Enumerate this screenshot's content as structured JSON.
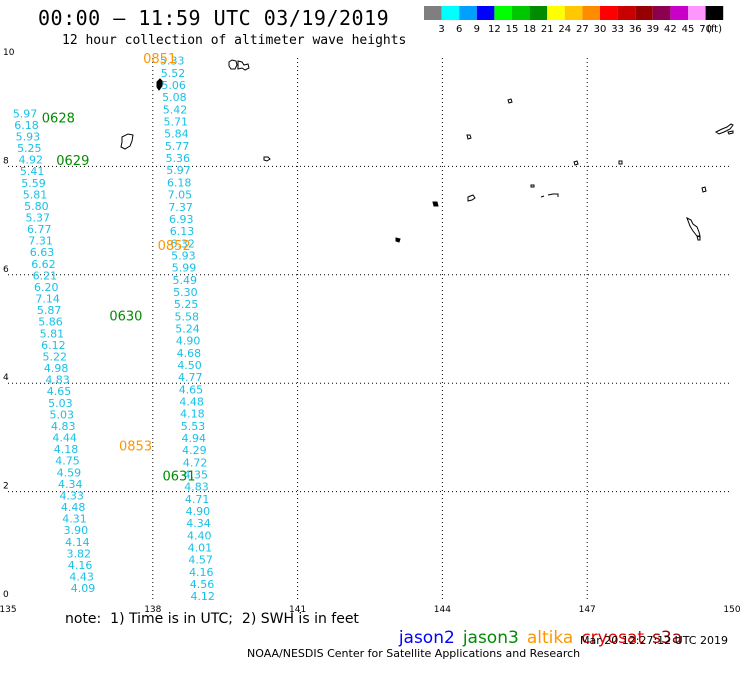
{
  "header": {
    "title": "00:00 – 11:59 UTC 03/19/2019",
    "subtitle": "12 hour collection of altimeter wave heights"
  },
  "legend": {
    "unit": "(ft)",
    "bins": [
      {
        "label": "3",
        "color": "#7f7f7f"
      },
      {
        "label": "6",
        "color": "#00ffff"
      },
      {
        "label": "9",
        "color": "#00a0ff"
      },
      {
        "label": "12",
        "color": "#0000ff"
      },
      {
        "label": "15",
        "color": "#00ff00"
      },
      {
        "label": "18",
        "color": "#00c800"
      },
      {
        "label": "21",
        "color": "#008c00"
      },
      {
        "label": "24",
        "color": "#ffff00"
      },
      {
        "label": "27",
        "color": "#ffc800"
      },
      {
        "label": "30",
        "color": "#ff8c00"
      },
      {
        "label": "33",
        "color": "#ff0000"
      },
      {
        "label": "36",
        "color": "#c80000"
      },
      {
        "label": "39",
        "color": "#960000"
      },
      {
        "label": "42",
        "color": "#8c0050"
      },
      {
        "label": "45",
        "color": "#c800c8"
      },
      {
        "label": "70",
        "color": "#ff96ff"
      },
      {
        "label": "",
        "color": "#000000"
      }
    ]
  },
  "axes": {
    "x_ticks": [
      "135",
      "138",
      "141",
      "144",
      "147",
      "150"
    ],
    "y_ticks": [
      "0",
      "2",
      "4",
      "6",
      "8",
      "10"
    ]
  },
  "colors": {
    "swh_value": "#19c0e6",
    "jason2": "#0000ff",
    "jason3": "#008c00",
    "altika": "#ff9600",
    "cryosat": "#e60000",
    "s3a": "#a00000"
  },
  "passes": [
    {
      "label": "0851",
      "color": "#ff9600",
      "lon": 137.8,
      "lat": 10.0
    },
    {
      "label": "0628",
      "color": "#008c00",
      "lon": 135.7,
      "lat": 8.9
    },
    {
      "label": "0629",
      "color": "#008c00",
      "lon": 136.0,
      "lat": 8.12
    },
    {
      "label": "0852",
      "color": "#ff9600",
      "lon": 138.1,
      "lat": 6.55
    },
    {
      "label": "0630",
      "color": "#008c00",
      "lon": 137.1,
      "lat": 5.25
    },
    {
      "label": "0853",
      "color": "#ff9600",
      "lon": 137.3,
      "lat": 2.85
    },
    {
      "label": "0631",
      "color": "#008c00",
      "lon": 138.2,
      "lat": 2.3
    }
  ],
  "tracks": [
    {
      "values": [
        "5.33",
        "5.52",
        "5.06",
        "5.08",
        "5.42",
        "5.71",
        "5.84",
        "5.77",
        "5.36",
        "5.97",
        "6.18",
        "7.05",
        "7.37",
        "6.93",
        "6.13",
        "6.32",
        "5.93",
        "5.99",
        "5.49",
        "5.30",
        "5.25",
        "5.58",
        "5.24",
        "4.90",
        "4.68",
        "4.50",
        "4.77",
        "4.65",
        "4.48",
        "4.18",
        "5.53",
        "4.94",
        "4.29",
        "4.72",
        "4.35",
        "4.83",
        "4.71",
        "4.90",
        "4.34",
        "4.40",
        "4.01",
        "4.57",
        "4.16",
        "4.56",
        "4.12"
      ],
      "lon_start": 138.15,
      "lat_start": 9.95,
      "lon_end": 138.78,
      "lat_end": 0.07
    },
    {
      "values": [
        "5.97",
        "6.18",
        "5.93",
        "5.25",
        "4.92",
        "5.41",
        "5.59",
        "5.81",
        "5.80",
        "5.37",
        "6.77",
        "7.31",
        "6.63",
        "6.62",
        "6.21",
        "6.20",
        "7.14",
        "5.87",
        "5.86",
        "5.81",
        "6.12",
        "5.22",
        "4.98",
        "4.83",
        "4.65",
        "5.03",
        "5.03",
        "4.83",
        "4.44",
        "4.18",
        "4.75",
        "4.59",
        "4.34",
        "4.33",
        "4.48",
        "4.31",
        "3.90",
        "4.14",
        "3.82",
        "4.16",
        "4.43",
        "4.09"
      ],
      "lon_start": 135.1,
      "lat_start": 8.98,
      "lon_end": 136.3,
      "lat_end": 0.22
    }
  ],
  "footer": {
    "note": "note:  1) Time is in UTC;  2) SWH is in feet",
    "sats": [
      "jason2",
      "jason3",
      "altika",
      "cryosat",
      "s3a"
    ],
    "credit": "NOAA/NESDIS Center for Satellite Applications and Research",
    "timestamp": "Mar 20 12:27:12 UTC 2019"
  }
}
